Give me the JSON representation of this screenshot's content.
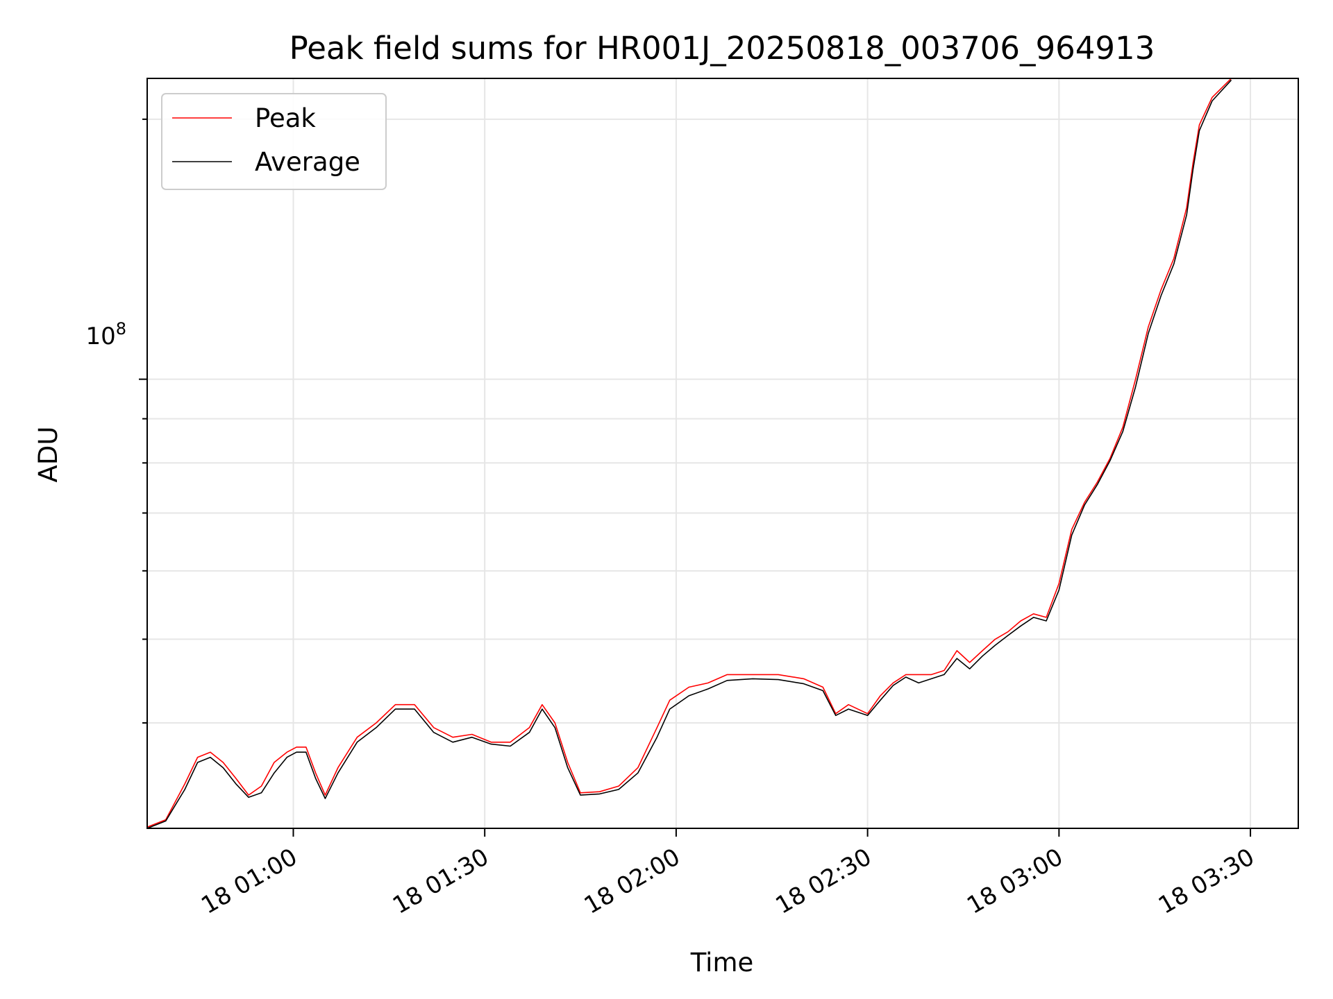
{
  "chart_data": {
    "type": "line",
    "title": "Peak field sums for HR001J_20250818_003706_964913",
    "xlabel": "Time",
    "ylabel": "ADU",
    "y_scale": "log",
    "grid": true,
    "legend_position": "top-left",
    "x_tick_labels": [
      "18 01:00",
      "18 01:30",
      "18 02:00",
      "18 02:30",
      "18 03:00",
      "18 03:30"
    ],
    "x_tick_times": [
      "2025-08-18T01:00:00",
      "2025-08-18T01:30:00",
      "2025-08-18T02:00:00",
      "2025-08-18T02:30:00",
      "2025-08-18T03:00:00",
      "2025-08-18T03:30:00"
    ],
    "y_tick_label_base": "10",
    "y_tick_label_exp": "8",
    "y_tick_value": 100000000,
    "xlim": [
      "2025-08-18T00:37:06",
      "2025-08-18T03:37:30"
    ],
    "ylim": [
      30200000,
      223000000
    ],
    "x": [
      "2025-08-18T00:37:06",
      "2025-08-18T00:40:00",
      "2025-08-18T00:43:00",
      "2025-08-18T00:45:00",
      "2025-08-18T00:47:00",
      "2025-08-18T00:49:00",
      "2025-08-18T00:51:00",
      "2025-08-18T00:53:00",
      "2025-08-18T00:55:00",
      "2025-08-18T00:57:00",
      "2025-08-18T00:59:00",
      "2025-08-18T01:00:30",
      "2025-08-18T01:02:00",
      "2025-08-18T01:03:30",
      "2025-08-18T01:05:00",
      "2025-08-18T01:07:00",
      "2025-08-18T01:10:00",
      "2025-08-18T01:13:00",
      "2025-08-18T01:16:00",
      "2025-08-18T01:19:00",
      "2025-08-18T01:22:00",
      "2025-08-18T01:25:00",
      "2025-08-18T01:28:00",
      "2025-08-18T01:31:00",
      "2025-08-18T01:34:00",
      "2025-08-18T01:37:00",
      "2025-08-18T01:39:00",
      "2025-08-18T01:41:00",
      "2025-08-18T01:43:00",
      "2025-08-18T01:45:00",
      "2025-08-18T01:48:00",
      "2025-08-18T01:51:00",
      "2025-08-18T01:54:00",
      "2025-08-18T01:57:00",
      "2025-08-18T01:59:00",
      "2025-08-18T02:02:00",
      "2025-08-18T02:05:00",
      "2025-08-18T02:08:00",
      "2025-08-18T02:12:00",
      "2025-08-18T02:16:00",
      "2025-08-18T02:20:00",
      "2025-08-18T02:23:00",
      "2025-08-18T02:25:00",
      "2025-08-18T02:27:00",
      "2025-08-18T02:30:00",
      "2025-08-18T02:32:00",
      "2025-08-18T02:34:00",
      "2025-08-18T02:36:00",
      "2025-08-18T02:38:00",
      "2025-08-18T02:40:00",
      "2025-08-18T02:42:00",
      "2025-08-18T02:44:00",
      "2025-08-18T02:46:00",
      "2025-08-18T02:48:00",
      "2025-08-18T02:50:00",
      "2025-08-18T02:52:00",
      "2025-08-18T02:54:00",
      "2025-08-18T02:56:00",
      "2025-08-18T02:58:00",
      "2025-08-18T03:00:00",
      "2025-08-18T03:02:00",
      "2025-08-18T03:04:00",
      "2025-08-18T03:06:00",
      "2025-08-18T03:08:00",
      "2025-08-18T03:10:00",
      "2025-08-18T03:12:00",
      "2025-08-18T03:14:00",
      "2025-08-18T03:16:00",
      "2025-08-18T03:18:00",
      "2025-08-18T03:20:00",
      "2025-08-18T03:21:00",
      "2025-08-18T03:22:00",
      "2025-08-18T03:24:00",
      "2025-08-18T03:27:00"
    ],
    "series": [
      {
        "name": "Peak",
        "color": "#ff0000",
        "values": [
          30300000,
          30900000,
          34000000,
          36500000,
          37000000,
          36000000,
          34500000,
          33000000,
          33800000,
          36000000,
          37000000,
          37500000,
          37500000,
          35000000,
          33000000,
          35500000,
          38500000,
          40000000,
          42000000,
          42000000,
          39500000,
          38500000,
          38800000,
          38000000,
          38000000,
          39500000,
          42000000,
          40000000,
          36000000,
          33200000,
          33300000,
          33800000,
          35500000,
          39500000,
          42500000,
          44000000,
          44500000,
          45500000,
          45500000,
          45500000,
          45000000,
          44000000,
          41000000,
          42000000,
          41000000,
          43000000,
          44500000,
          45500000,
          45500000,
          45500000,
          46000000,
          48500000,
          47000000,
          48500000,
          50000000,
          51000000,
          52500000,
          53500000,
          53000000,
          58000000,
          67000000,
          72000000,
          76000000,
          81000000,
          88000000,
          100000000,
          115000000,
          127000000,
          138000000,
          158000000,
          178000000,
          197000000,
          212000000,
          223000000
        ]
      },
      {
        "name": "Average",
        "color": "#000000",
        "values": [
          30200000,
          30800000,
          33500000,
          36000000,
          36500000,
          35500000,
          34000000,
          32800000,
          33200000,
          35000000,
          36500000,
          37000000,
          37000000,
          34500000,
          32700000,
          35000000,
          38000000,
          39500000,
          41500000,
          41500000,
          39000000,
          38000000,
          38500000,
          37800000,
          37600000,
          39000000,
          41500000,
          39500000,
          35500000,
          33000000,
          33100000,
          33500000,
          35000000,
          38500000,
          41500000,
          43000000,
          43800000,
          44800000,
          45000000,
          44900000,
          44400000,
          43600000,
          40800000,
          41500000,
          40800000,
          42500000,
          44200000,
          45200000,
          44500000,
          45000000,
          45500000,
          47500000,
          46200000,
          47800000,
          49200000,
          50500000,
          51800000,
          53000000,
          52500000,
          57000000,
          66000000,
          71500000,
          75500000,
          80500000,
          87000000,
          98000000,
          113000000,
          125000000,
          136000000,
          155000000,
          175000000,
          194000000,
          210000000,
          222000000
        ]
      }
    ]
  }
}
